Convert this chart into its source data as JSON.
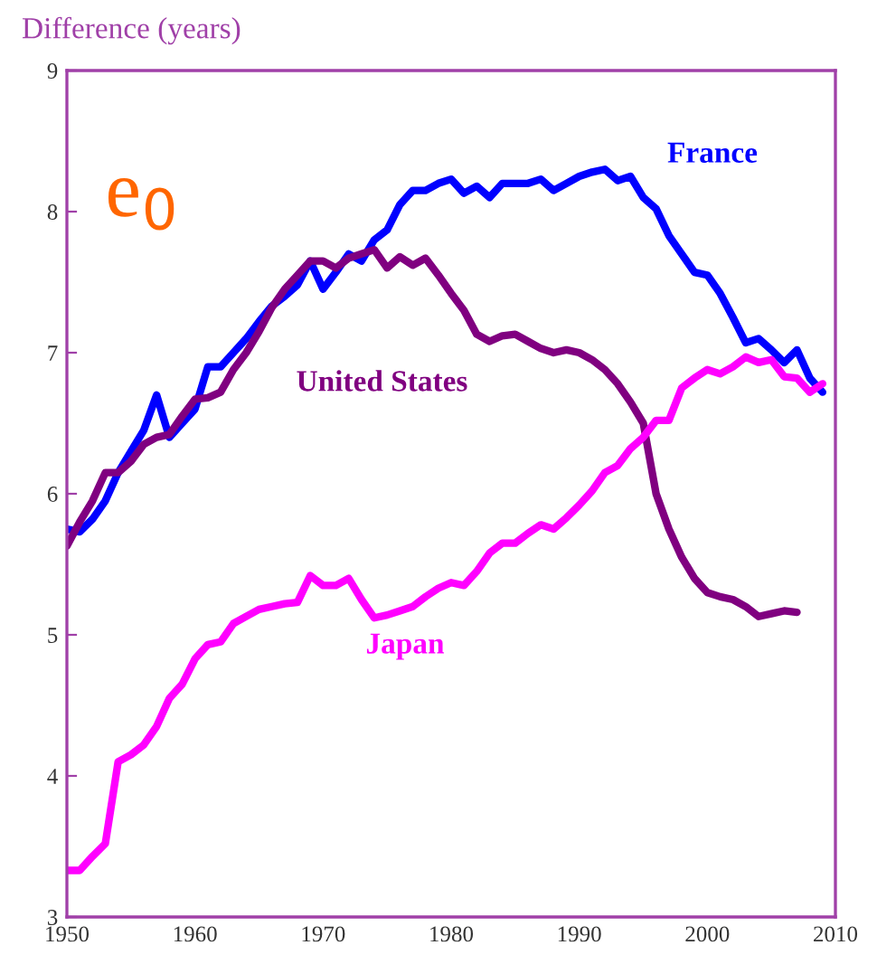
{
  "chart_data": {
    "type": "line",
    "ylabel": "Difference (years)",
    "annotations": [
      "e$_{0}$"
    ],
    "x": [
      1950,
      1951,
      1952,
      1953,
      1954,
      1955,
      1956,
      1957,
      1958,
      1959,
      1960,
      1961,
      1962,
      1963,
      1964,
      1965,
      1966,
      1967,
      1968,
      1969,
      1970,
      1971,
      1972,
      1973,
      1974,
      1975,
      1976,
      1977,
      1978,
      1979,
      1980,
      1981,
      1982,
      1983,
      1984,
      1985,
      1986,
      1987,
      1988,
      1989,
      1990,
      1991,
      1992,
      1993,
      1994,
      1995,
      1996,
      1997,
      1998,
      1999,
      2000,
      2001,
      2002,
      2003,
      2004,
      2005,
      2006,
      2007,
      2008,
      2009
    ],
    "xlim": [
      1950,
      2010
    ],
    "xticks": [
      1950,
      1960,
      1970,
      1980,
      1990,
      2000,
      2010
    ],
    "ylim": [
      3,
      9
    ],
    "yticks": [
      3,
      4,
      5,
      6,
      7,
      8,
      9
    ],
    "grid": false,
    "legend": false,
    "marker": "none",
    "line_style": "solid",
    "series": [
      {
        "name": "France",
        "color": "#0000ff",
        "values": [
          5.75,
          5.73,
          5.82,
          5.95,
          6.15,
          6.3,
          6.45,
          6.7,
          6.4,
          6.5,
          6.6,
          6.9,
          6.9,
          7.0,
          7.1,
          7.22,
          7.33,
          7.4,
          7.48,
          7.65,
          7.45,
          7.57,
          7.7,
          7.65,
          7.8,
          7.87,
          8.05,
          8.15,
          8.15,
          8.2,
          8.23,
          8.13,
          8.18,
          8.1,
          8.2,
          8.2,
          8.2,
          8.23,
          8.15,
          8.2,
          8.25,
          8.28,
          8.3,
          8.22,
          8.25,
          8.1,
          8.02,
          7.83,
          7.7,
          7.57,
          7.55,
          7.42,
          7.25,
          7.07,
          7.1,
          7.02,
          6.93,
          7.02,
          6.82,
          6.72
        ]
      },
      {
        "name": "United States",
        "color": "#800080",
        "values": [
          5.63,
          5.8,
          5.95,
          6.15,
          6.15,
          6.23,
          6.35,
          6.4,
          6.42,
          6.55,
          6.67,
          6.68,
          6.72,
          6.88,
          7.0,
          7.15,
          7.32,
          7.45,
          7.55,
          7.65,
          7.65,
          7.6,
          7.67,
          7.7,
          7.73,
          7.6,
          7.68,
          7.62,
          7.67,
          7.55,
          7.42,
          7.3,
          7.13,
          7.08,
          7.12,
          7.13,
          7.08,
          7.03,
          7.0,
          7.02,
          7.0,
          6.95,
          6.88,
          6.78,
          6.65,
          6.5,
          6.0,
          5.75,
          5.55,
          5.4,
          5.3,
          5.27,
          5.25,
          5.2,
          5.13,
          5.15,
          5.17,
          5.16,
          null,
          null
        ]
      },
      {
        "name": "Japan",
        "color": "#ff00ff",
        "values": [
          3.33,
          3.33,
          3.43,
          3.52,
          4.1,
          4.15,
          4.22,
          4.35,
          4.55,
          4.65,
          4.83,
          4.93,
          4.95,
          5.08,
          5.13,
          5.18,
          5.2,
          5.22,
          5.23,
          5.42,
          5.35,
          5.35,
          5.4,
          5.25,
          5.12,
          5.14,
          5.17,
          5.2,
          5.27,
          5.33,
          5.37,
          5.35,
          5.45,
          5.58,
          5.65,
          5.65,
          5.72,
          5.78,
          5.75,
          5.83,
          5.92,
          6.02,
          6.15,
          6.2,
          6.32,
          6.4,
          6.52,
          6.52,
          6.75,
          6.82,
          6.88,
          6.85,
          6.9,
          6.97,
          6.93,
          6.95,
          6.83,
          6.82,
          6.72,
          6.78
        ]
      }
    ]
  }
}
